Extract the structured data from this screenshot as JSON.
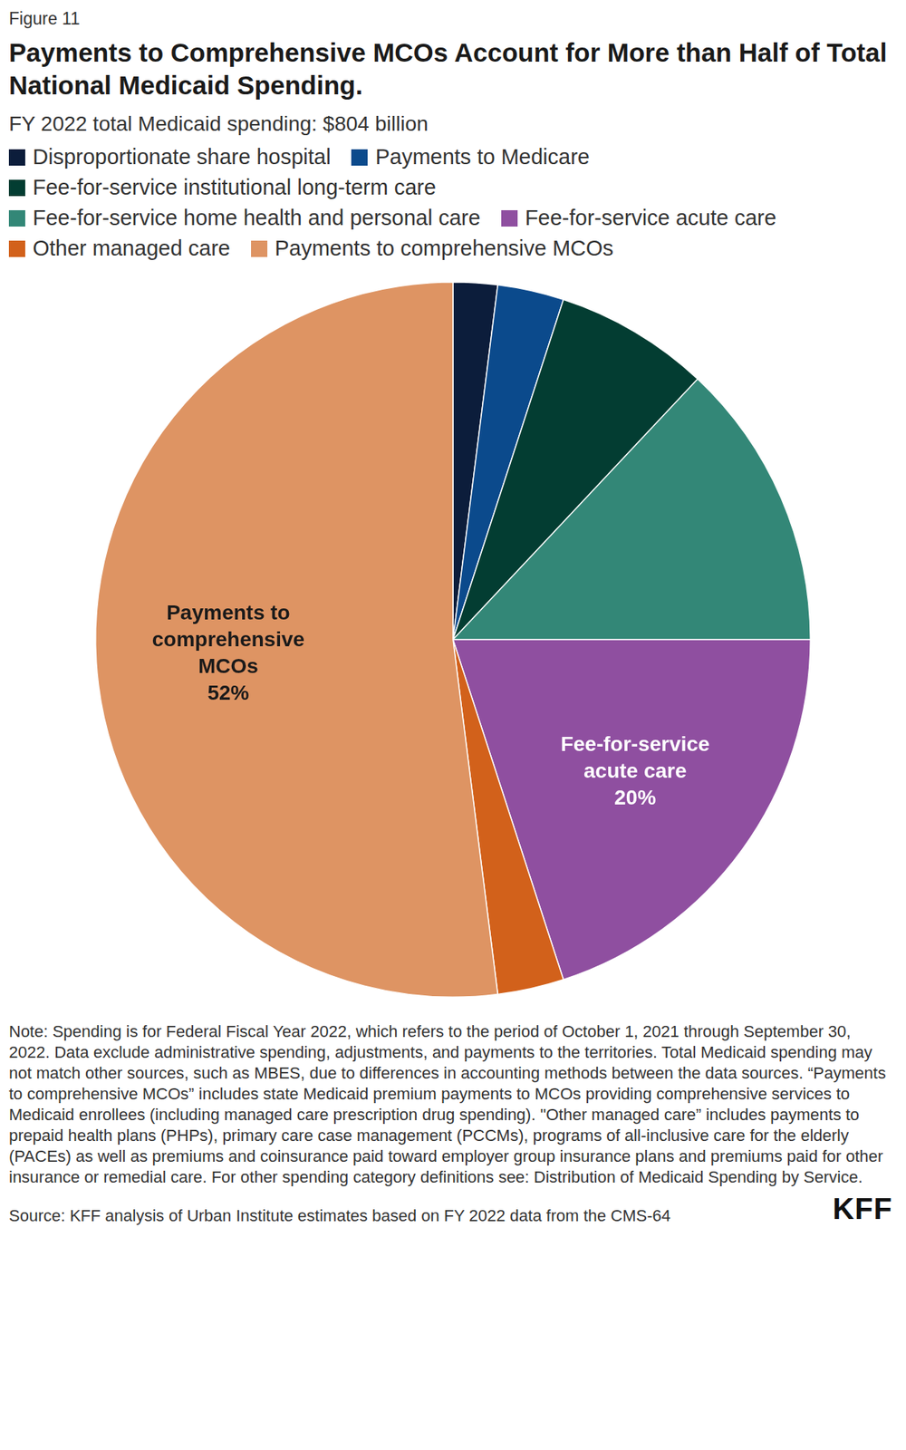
{
  "chart_data": {
    "type": "pie",
    "figure_label": "Figure 11",
    "title": "Payments to Comprehensive MCOs Account for More than Half of Total National Medicaid Spending.",
    "subtitle": "FY 2022 total Medicaid spending: $804 billion",
    "categories": [
      "Disproportionate share hospital",
      "Payments to Medicare",
      "Fee-for-service institutional long-term care",
      "Fee-for-service home health and personal care",
      "Fee-for-service acute care",
      "Other managed care",
      "Payments to comprehensive MCOs"
    ],
    "values": [
      2,
      3,
      7,
      13,
      20,
      3,
      52
    ],
    "value_labels": [
      null,
      null,
      null,
      null,
      "20%",
      null,
      "52%"
    ],
    "colors": [
      "#0c1d3b",
      "#0b4a8c",
      "#033d32",
      "#338777",
      "#8f4fa0",
      "#d2611b",
      "#de9463"
    ],
    "legend": "top",
    "note": "Note: Spending is for Federal Fiscal Year 2022, which refers to the period of October 1, 2021 through September 30, 2022. Data exclude administrative spending, adjustments, and payments to the territories. Total Medicaid spending may not match other sources, such as MBES, due to differences in accounting methods between the data sources. “Payments to comprehensive MCOs” includes state Medicaid premium payments to MCOs providing comprehensive services to Medicaid enrollees (including managed care prescription drug spending). \"Other managed care” includes payments to prepaid health plans (PHPs), primary care case management (PCCMs), programs of all-inclusive care for the elderly (PACEs) as well as premiums and coinsurance paid toward employer group insurance plans and premiums paid for other insurance or remedial care. For other spending category definitions see: Distribution of Medicaid Spending by Service.",
    "source": "Source: KFF analysis of Urban Institute estimates based on FY 2022 data from the CMS-64",
    "brand": "KFF"
  }
}
